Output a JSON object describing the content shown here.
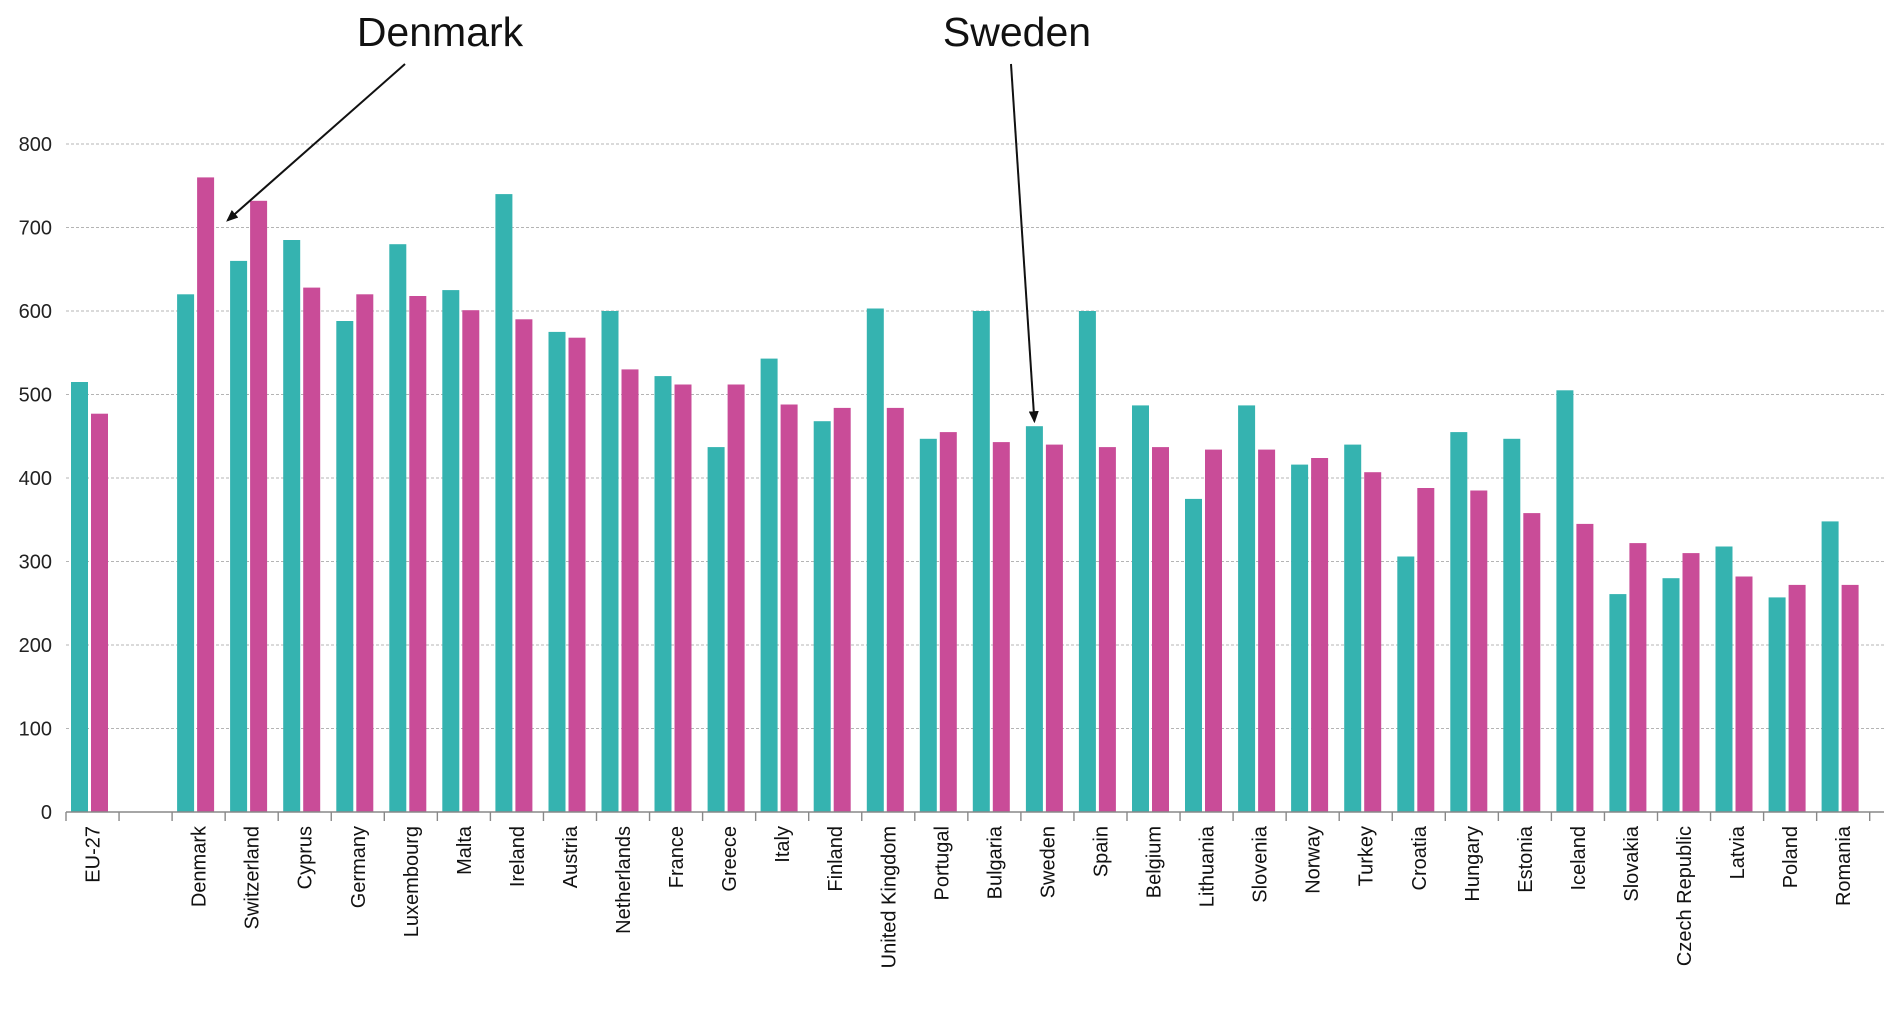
{
  "chart_data": {
    "type": "bar",
    "title": "",
    "xlabel": "",
    "ylabel": "",
    "ylim": [
      0,
      800
    ],
    "yticks": [
      "0",
      "100",
      "200",
      "300",
      "400",
      "500",
      "600",
      "700",
      "800"
    ],
    "grid": true,
    "legend": "none",
    "categories": [
      "EU-27",
      "",
      "Denmark",
      "Switzerland",
      "Cyprus",
      "Germany",
      "Luxembourg",
      "Malta",
      "Ireland",
      "Austria",
      "Netherlands",
      "France",
      "Greece",
      "Italy",
      "Finland",
      "United Kingdom",
      "Portugal",
      "Bulgaria",
      "Sweden",
      "Spain",
      "Belgium",
      "Lithuania",
      "Slovenia",
      "Norway",
      "Turkey",
      "Croatia",
      "Hungary",
      "Estonia",
      "Iceland",
      "Slovakia",
      "Czech Republic",
      "Latvia",
      "Poland",
      "Romania"
    ],
    "series": [
      {
        "color": "#35b3b0",
        "values": [
          515,
          null,
          620,
          660,
          685,
          588,
          680,
          625,
          740,
          575,
          600,
          522,
          437,
          543,
          468,
          603,
          447,
          600,
          462,
          600,
          487,
          375,
          487,
          416,
          440,
          306,
          455,
          447,
          505,
          261,
          280,
          318,
          257,
          348
        ]
      },
      {
        "color": "#c94c98",
        "values": [
          477,
          null,
          760,
          732,
          628,
          620,
          618,
          601,
          590,
          568,
          530,
          512,
          512,
          488,
          484,
          484,
          455,
          443,
          440,
          437,
          437,
          434,
          434,
          424,
          407,
          388,
          385,
          358,
          345,
          322,
          310,
          282,
          272,
          272
        ]
      }
    ],
    "annotations": [
      {
        "label": "Denmark",
        "target": "Denmark",
        "series": 1
      },
      {
        "label": "Sweden",
        "target": "Sweden",
        "series": 0
      }
    ]
  }
}
